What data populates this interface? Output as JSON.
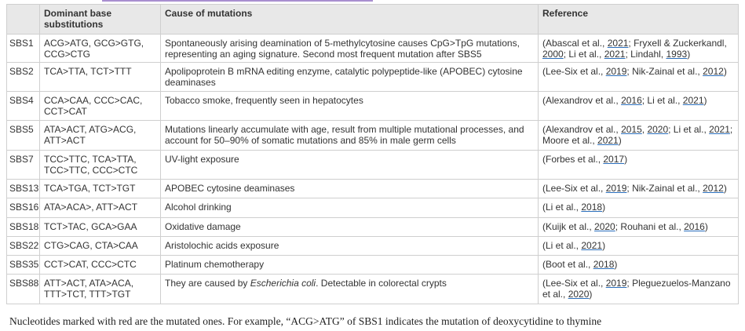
{
  "table": {
    "header": [
      "Dominant base substitutions",
      "Cause of mutations",
      "Reference"
    ],
    "rows": [
      [
        "SBS1",
        "ACG>ATG, GCG>GTG, CCG>CTG",
        [
          "Spontaneously arising deamination of 5-methylcytosine causes CpG>TpG mutations, representing an aging signature. Second most frequent mutation after SBS5"
        ],
        [
          "(Abascal et al., ",
          {
            "link": "2021"
          },
          "; Fryxell & Zuckerkandl, ",
          {
            "link": "2000"
          },
          "; Li et al., ",
          {
            "link": "2021"
          },
          "; Lindahl, ",
          {
            "link": "1993"
          },
          ")"
        ]
      ],
      [
        "SBS2",
        "TCA>TTA, TCT>TTT",
        [
          "Apolipoprotein B mRNA editing enzyme, catalytic polypeptide-like (APOBEC) cytosine deaminases"
        ],
        [
          "(Lee-Six et al., ",
          {
            "link": "2019"
          },
          "; Nik-Zainal et al., ",
          {
            "link": "2012"
          },
          ")"
        ]
      ],
      [
        "SBS4",
        "CCA>CAA, CCC>CAC, CCT>CAT",
        [
          "Tobacco smoke, frequently seen in hepatocytes"
        ],
        [
          "(Alexandrov et al., ",
          {
            "link": "2016"
          },
          "; Li et al., ",
          {
            "link": "2021"
          },
          ")"
        ]
      ],
      [
        "SBS5",
        "ATA>ACT, ATG>ACG, ATT>ACT",
        [
          "Mutations linearly accumulate with age, result from multiple mutational processes, and account for 50–90% of somatic mutations and 85% in male germ cells"
        ],
        [
          "(Alexandrov et al., ",
          {
            "link": "2015"
          },
          ", ",
          {
            "link": "2020"
          },
          "; Li et al., ",
          {
            "link": "2021"
          },
          "; Moore et al., ",
          {
            "link": "2021"
          },
          ")"
        ]
      ],
      [
        "SBS7",
        "TCC>TTC, TCA>TTA, TCC>TTC, CCC>CTC",
        [
          "UV-light exposure"
        ],
        [
          "(Forbes et al., ",
          {
            "link": "2017"
          },
          ")"
        ]
      ],
      [
        "SBS13",
        "TCA>TGA, TCT>TGT",
        [
          "APOBEC cytosine deaminases"
        ],
        [
          "(Lee-Six et al., ",
          {
            "link": "2019"
          },
          "; Nik-Zainal et al., ",
          {
            "link": "2012"
          },
          ")"
        ]
      ],
      [
        "SBS16",
        "ATA>ACA>, ATT>ACT",
        [
          "Alcohol drinking"
        ],
        [
          "(Li et al., ",
          {
            "link": "2018"
          },
          ")"
        ]
      ],
      [
        "SBS18",
        "TCT>TAC, GCA>GAA",
        [
          "Oxidative damage"
        ],
        [
          "(Kuijk et al., ",
          {
            "link": "2020"
          },
          "; Rouhani et al., ",
          {
            "link": "2016"
          },
          ")"
        ]
      ],
      [
        "SBS22",
        "CTG>CAG, CTA>CAA",
        [
          "Aristolochic acids exposure"
        ],
        [
          "(Li et al., ",
          {
            "link": "2021"
          },
          ")"
        ]
      ],
      [
        "SBS35",
        "CCT>CAT, CCC>CTC",
        [
          "Platinum chemotherapy"
        ],
        [
          "(Boot et al., ",
          {
            "link": "2018"
          },
          ")"
        ]
      ],
      [
        "SBS88",
        "ATT>ACT, ATA>ACA, TTT>TCT, TTT>TGT",
        [
          "They are caused by ",
          {
            "italic": "Escherichia coli"
          },
          ". Detectable in colorectal crypts"
        ],
        [
          "(Lee-Six et al., ",
          {
            "link": "2019"
          },
          "; Pleguezuelos-Manzano et al., ",
          {
            "link": "2020"
          },
          ")"
        ]
      ]
    ]
  },
  "caption": "Nucleotides marked with red are the mutated ones. For example, “ACG>ATG” of SBS1 indicates the mutation of deoxycytidine to thymine"
}
